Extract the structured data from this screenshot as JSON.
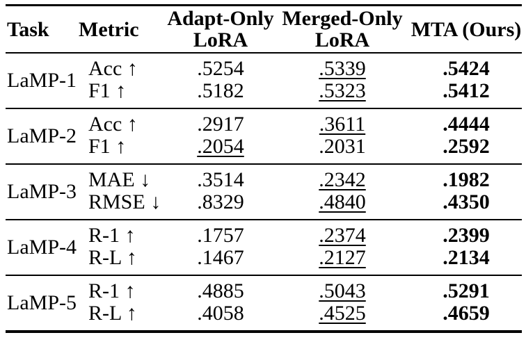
{
  "page": {
    "background": "#ffffff",
    "text_color": "#000000",
    "rule_color": "#000000"
  },
  "table": {
    "headers": {
      "task": "Task",
      "metric": "Metric",
      "adapt": "Adapt-Only\nLoRA",
      "merged": "Merged-Only\nLoRA",
      "mta": "MTA (Ours)"
    },
    "emphasis_legend": {
      "best": "bold",
      "second_best": "underline"
    },
    "blocks": [
      {
        "task": "LaMP-1",
        "rows": [
          {
            "metric": "Acc ↑",
            "values": [
              {
                "text": ".5254",
                "emphasis": "none"
              },
              {
                "text": ".5339",
                "emphasis": "second-best"
              },
              {
                "text": ".5424",
                "emphasis": "best"
              }
            ]
          },
          {
            "metric": "F1 ↑",
            "values": [
              {
                "text": ".5182",
                "emphasis": "none"
              },
              {
                "text": ".5323",
                "emphasis": "second-best"
              },
              {
                "text": ".5412",
                "emphasis": "best"
              }
            ]
          }
        ]
      },
      {
        "task": "LaMP-2",
        "rows": [
          {
            "metric": "Acc ↑",
            "values": [
              {
                "text": ".2917",
                "emphasis": "none"
              },
              {
                "text": ".3611",
                "emphasis": "second-best"
              },
              {
                "text": ".4444",
                "emphasis": "best"
              }
            ]
          },
          {
            "metric": "F1 ↑",
            "values": [
              {
                "text": ".2054",
                "emphasis": "second-best"
              },
              {
                "text": ".2031",
                "emphasis": "none"
              },
              {
                "text": ".2592",
                "emphasis": "best"
              }
            ]
          }
        ]
      },
      {
        "task": "LaMP-3",
        "rows": [
          {
            "metric": "MAE ↓",
            "values": [
              {
                "text": ".3514",
                "emphasis": "none"
              },
              {
                "text": ".2342",
                "emphasis": "second-best"
              },
              {
                "text": ".1982",
                "emphasis": "best"
              }
            ]
          },
          {
            "metric": "RMSE ↓",
            "values": [
              {
                "text": ".8329",
                "emphasis": "none"
              },
              {
                "text": ".4840",
                "emphasis": "second-best"
              },
              {
                "text": ".4350",
                "emphasis": "best"
              }
            ]
          }
        ]
      },
      {
        "task": "LaMP-4",
        "rows": [
          {
            "metric": "R-1 ↑",
            "values": [
              {
                "text": ".1757",
                "emphasis": "none"
              },
              {
                "text": ".2374",
                "emphasis": "second-best"
              },
              {
                "text": ".2399",
                "emphasis": "best"
              }
            ]
          },
          {
            "metric": "R-L ↑",
            "values": [
              {
                "text": ".1467",
                "emphasis": "none"
              },
              {
                "text": ".2127",
                "emphasis": "second-best"
              },
              {
                "text": ".2134",
                "emphasis": "best"
              }
            ]
          }
        ]
      },
      {
        "task": "LaMP-5",
        "rows": [
          {
            "metric": "R-1 ↑",
            "values": [
              {
                "text": ".4885",
                "emphasis": "none"
              },
              {
                "text": ".5043",
                "emphasis": "second-best"
              },
              {
                "text": ".5291",
                "emphasis": "best"
              }
            ]
          },
          {
            "metric": "R-L ↑",
            "values": [
              {
                "text": ".4058",
                "emphasis": "none"
              },
              {
                "text": ".4525",
                "emphasis": "second-best"
              },
              {
                "text": ".4659",
                "emphasis": "best"
              }
            ]
          }
        ]
      }
    ]
  },
  "chart_data": {
    "type": "table",
    "title": "",
    "columns": [
      "Task",
      "Metric",
      "Adapt-Only LoRA",
      "Merged-Only LoRA",
      "MTA (Ours)"
    ],
    "rows": [
      [
        "LaMP-1",
        "Acc ↑",
        0.5254,
        0.5339,
        0.5424
      ],
      [
        "LaMP-1",
        "F1 ↑",
        0.5182,
        0.5323,
        0.5412
      ],
      [
        "LaMP-2",
        "Acc ↑",
        0.2917,
        0.3611,
        0.4444
      ],
      [
        "LaMP-2",
        "F1 ↑",
        0.2054,
        0.2031,
        0.2592
      ],
      [
        "LaMP-3",
        "MAE ↓",
        0.3514,
        0.2342,
        0.1982
      ],
      [
        "LaMP-3",
        "RMSE ↓",
        0.8329,
        0.484,
        0.435
      ],
      [
        "LaMP-4",
        "R-1 ↑",
        0.1757,
        0.2374,
        0.2399
      ],
      [
        "LaMP-4",
        "R-L ↑",
        0.1467,
        0.2127,
        0.2134
      ],
      [
        "LaMP-5",
        "R-1 ↑",
        0.4885,
        0.5043,
        0.5291
      ],
      [
        "LaMP-5",
        "R-L ↑",
        0.4058,
        0.4525,
        0.4659
      ]
    ],
    "notes": "Bold values = best (MTA column); underlined values = second-best"
  }
}
